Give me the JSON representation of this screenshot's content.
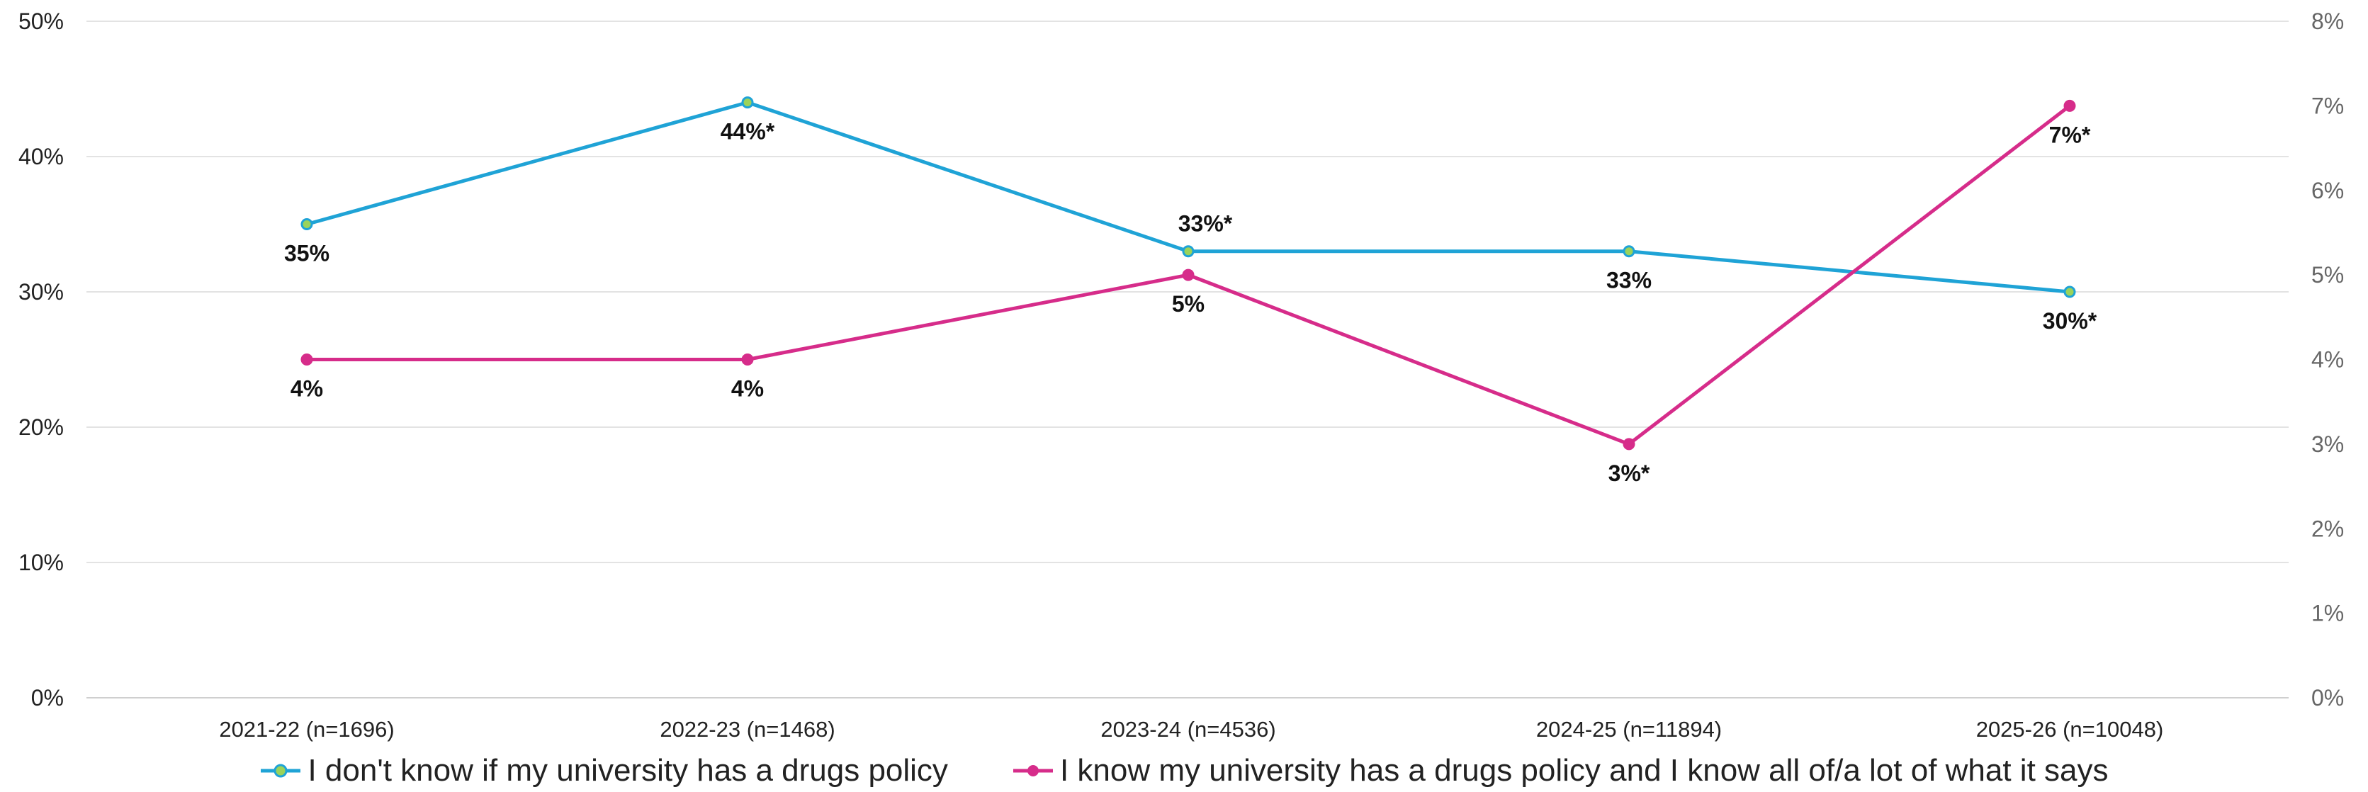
{
  "chart_data": {
    "type": "line",
    "categories": [
      "2021-22 (n=1696)",
      "2022-23 (n=1468)",
      "2023-24 (n=4536)",
      "2024-25 (n=11894)",
      "2025-26 (n=10048)"
    ],
    "y_left": {
      "ylim": [
        0,
        50
      ],
      "ticks": [
        "0%",
        "10%",
        "20%",
        "30%",
        "40%",
        "50%"
      ]
    },
    "y_right": {
      "ylim": [
        0,
        8
      ],
      "ticks": [
        "0%",
        "1%",
        "2%",
        "3%",
        "4%",
        "5%",
        "6%",
        "7%",
        "8%"
      ]
    },
    "grid": "horizontal",
    "legend_position": "bottom",
    "series": [
      {
        "name": "I don't know if my university has a drugs policy",
        "axis": "left",
        "values": [
          35,
          44,
          33,
          33,
          30
        ],
        "labels": [
          "35%",
          "44%*",
          "33%*",
          "33%",
          "30%*"
        ],
        "color": "#1fa3d6",
        "marker_color": "#9bd35a"
      },
      {
        "name": "I know my university has a drugs policy and I know all of/a lot of what it says",
        "axis": "right",
        "values": [
          4,
          4,
          5,
          3,
          7
        ],
        "labels": [
          "4%",
          "4%",
          "5%",
          "3%*",
          "7%*"
        ],
        "color": "#d62c8a",
        "marker_color": "#d62c8a"
      }
    ]
  }
}
